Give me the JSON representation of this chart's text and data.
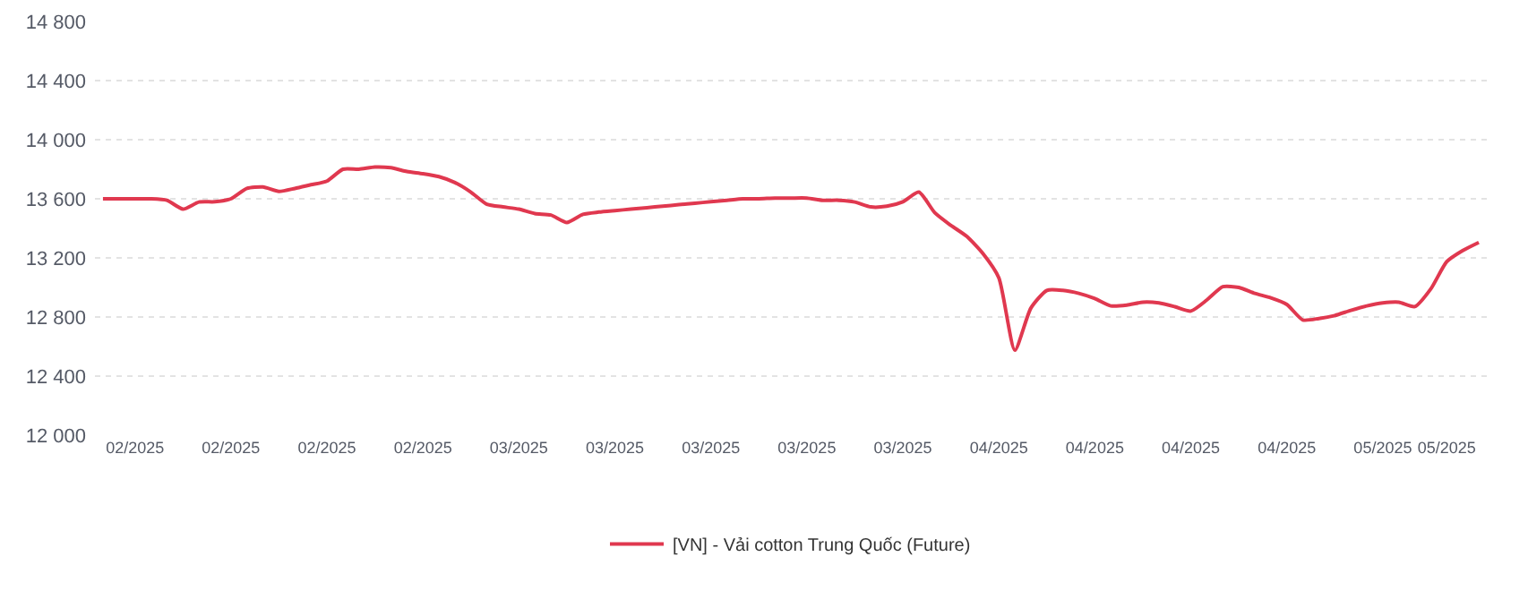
{
  "chart_data": {
    "type": "line",
    "categories": [
      null,
      null,
      "02/2025",
      null,
      null,
      null,
      null,
      null,
      "02/2025",
      null,
      null,
      null,
      null,
      null,
      "02/2025",
      null,
      null,
      null,
      null,
      null,
      "02/2025",
      null,
      null,
      null,
      null,
      null,
      "03/2025",
      null,
      null,
      null,
      null,
      null,
      "03/2025",
      null,
      null,
      null,
      null,
      null,
      "03/2025",
      null,
      null,
      null,
      null,
      null,
      "03/2025",
      null,
      null,
      null,
      null,
      null,
      "03/2025",
      null,
      null,
      null,
      null,
      null,
      "04/2025",
      null,
      null,
      null,
      null,
      null,
      "04/2025",
      null,
      null,
      null,
      null,
      null,
      "04/2025",
      null,
      null,
      null,
      null,
      null,
      "04/2025",
      null,
      null,
      null,
      null,
      null,
      "05/2025",
      null,
      null,
      null,
      "05/2025",
      null,
      null
    ],
    "series": [
      {
        "name": "[VN] - Vải cotton Trung Quốc (Future)",
        "color": "#e0384f",
        "values": [
          13600,
          13600,
          13600,
          13600,
          13590,
          13530,
          13578,
          13580,
          13600,
          13670,
          13680,
          13650,
          13670,
          13695,
          13720,
          13800,
          13800,
          13815,
          13810,
          13785,
          13770,
          13750,
          13710,
          13645,
          13563,
          13545,
          13530,
          13500,
          13490,
          13440,
          13495,
          13510,
          13520,
          13530,
          13540,
          13550,
          13560,
          13570,
          13580,
          13590,
          13600,
          13600,
          13605,
          13605,
          13605,
          13590,
          13590,
          13578,
          13545,
          13550,
          13580,
          13645,
          13505,
          13420,
          13345,
          13230,
          13065,
          12575,
          12860,
          12980,
          12980,
          12960,
          12925,
          12875,
          12880,
          12900,
          12895,
          12870,
          12840,
          12915,
          13005,
          13000,
          12960,
          12930,
          12885,
          12780,
          12790,
          12810,
          12845,
          12875,
          12895,
          12900,
          12870,
          12990,
          13175,
          13250,
          13305
        ]
      }
    ],
    "ylim": [
      12000,
      14800
    ],
    "yticks": [
      {
        "value": 12000,
        "label": "12 000"
      },
      {
        "value": 12400,
        "label": "12 400"
      },
      {
        "value": 12800,
        "label": "12 800"
      },
      {
        "value": 13200,
        "label": "13 200"
      },
      {
        "value": 13600,
        "label": "13 600"
      },
      {
        "value": 14000,
        "label": "14 000"
      },
      {
        "value": 14400,
        "label": "14 400"
      },
      {
        "value": 14800,
        "label": "14 800"
      }
    ],
    "grid": "y",
    "legend": "bottom",
    "line_style": "solid"
  }
}
